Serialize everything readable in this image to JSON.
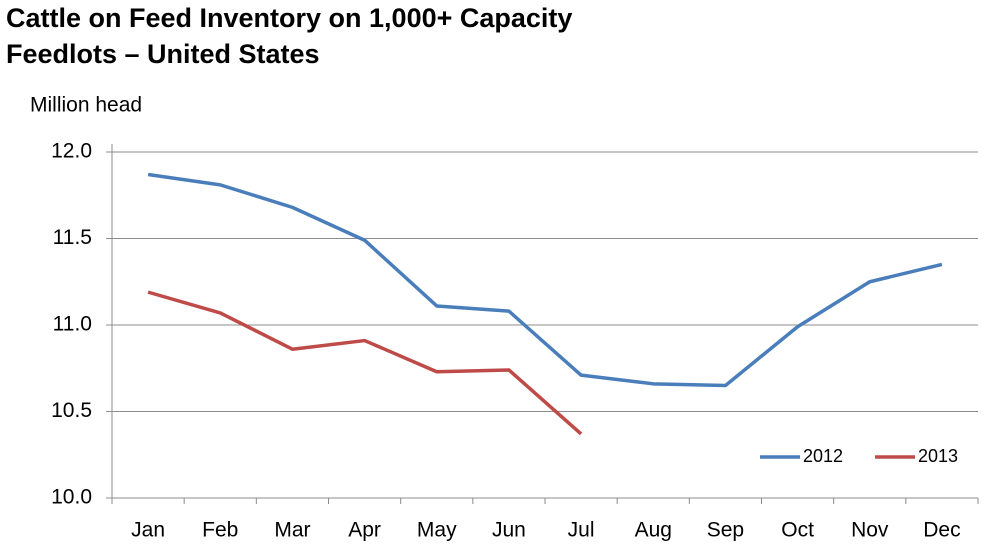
{
  "chart_data": {
    "type": "line",
    "title": [
      "Cattle on Feed Inventory on 1,000+ Capacity",
      "Feedlots – United States"
    ],
    "y_label": "Million head",
    "categories": [
      "Jan",
      "Feb",
      "Mar",
      "Apr",
      "May",
      "Jun",
      "Jul",
      "Aug",
      "Sep",
      "Oct",
      "Nov",
      "Dec"
    ],
    "series": [
      {
        "name": "2012",
        "color": "#4a7ebb",
        "values": [
          11.87,
          11.81,
          11.68,
          11.49,
          11.11,
          11.08,
          10.71,
          10.66,
          10.65,
          10.99,
          11.25,
          11.35
        ]
      },
      {
        "name": "2013",
        "color": "#be4b48",
        "values": [
          11.19,
          11.07,
          10.86,
          10.91,
          10.73,
          10.74,
          10.37,
          null,
          null,
          null,
          null,
          null
        ]
      }
    ],
    "ylim": [
      10,
      12
    ],
    "yticks": [
      {
        "value": 10,
        "label": "10.0"
      },
      {
        "value": 10.5,
        "label": "10.5"
      },
      {
        "value": 11,
        "label": "11.0"
      },
      {
        "value": 11.5,
        "label": "11.5"
      },
      {
        "value": 12,
        "label": "12.0"
      }
    ],
    "grid": true,
    "legend": "lower right"
  }
}
